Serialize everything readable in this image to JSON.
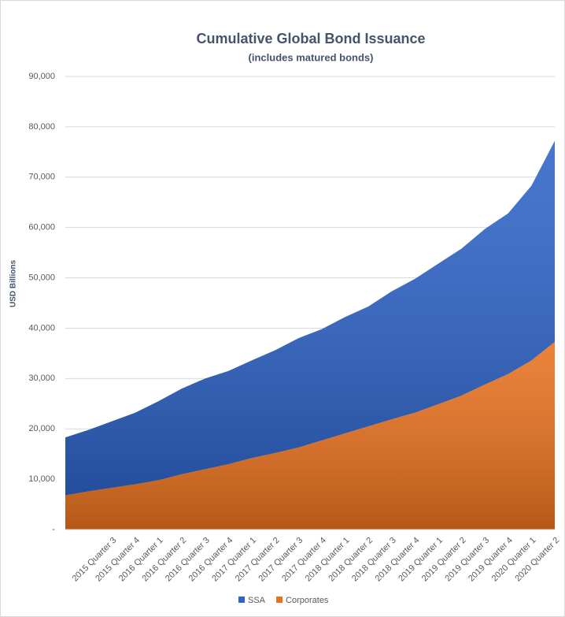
{
  "chart_data": {
    "type": "stacked_area",
    "title": "Cumulative Global Bond Issuance",
    "subtitle": "(includes matured bonds)",
    "y_label": "USD Billions",
    "categories": [
      null,
      null,
      "2015 Quarter 3",
      "2015 Quarter 4",
      "2016 Quarter 1",
      "2016 Quarter 2",
      "2016 Quarter 3",
      "2016 Quarter 4",
      "2017 Quarter 1",
      "2017 Quarter 2",
      "2017 Quarter 3",
      "2017 Quarter 4",
      "2018 Quarter 1",
      "2018 Quarter 2",
      "2018 Quarter 3",
      "2018 Quarter 4",
      "2019 Quarter 1",
      "2019 Quarter 2",
      "2019 Quarter 3",
      "2019 Quarter 4",
      "2020 Quarter 1",
      "2020 Quarter 2"
    ],
    "series": [
      {
        "name": "Corporates",
        "color": "#e8711e",
        "values": [
          6800,
          7600,
          8300,
          9000,
          9800,
          11000,
          12000,
          13000,
          14200,
          15200,
          16300,
          17700,
          19100,
          20500,
          21900,
          23200,
          24900,
          26600,
          28800,
          30900,
          33600,
          37300
        ]
      },
      {
        "name": "SSA",
        "color": "#2e64c8",
        "values": [
          11500,
          12200,
          13200,
          14200,
          15700,
          17000,
          18000,
          18500,
          19400,
          20400,
          21700,
          22100,
          23100,
          23800,
          25400,
          26600,
          27900,
          29200,
          30900,
          31900,
          34700,
          39900
        ]
      }
    ],
    "legend_order": [
      "SSA",
      "Corporates"
    ],
    "ylim": [
      0,
      90000
    ],
    "yticks": [
      {
        "value": 0,
        "label": "-"
      },
      {
        "value": 10000,
        "label": "10,000"
      },
      {
        "value": 20000,
        "label": "20,000"
      },
      {
        "value": 30000,
        "label": "30,000"
      },
      {
        "value": 40000,
        "label": "40,000"
      },
      {
        "value": 50000,
        "label": "50,000"
      },
      {
        "value": 60000,
        "label": "60,000"
      },
      {
        "value": 70000,
        "label": "70,000"
      },
      {
        "value": 80000,
        "label": "80,000"
      },
      {
        "value": 90000,
        "label": "90,000"
      }
    ],
    "grid": true
  }
}
